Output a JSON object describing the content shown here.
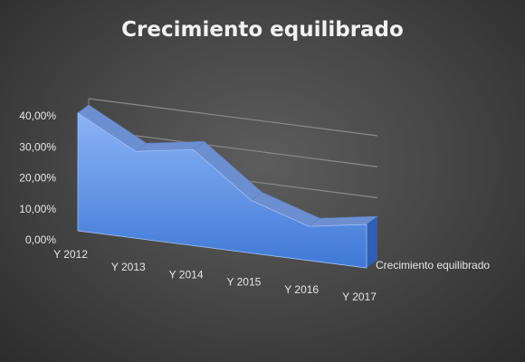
{
  "chart_data": {
    "type": "area",
    "title": "Crecimiento equilibrado",
    "categories": [
      "Y 2012",
      "Y 2013",
      "Y 2014",
      "Y 2015",
      "Y 2016",
      "Y 2017"
    ],
    "series": [
      {
        "name": "Crecimiento equilibrado",
        "values": [
          0.38,
          0.28,
          0.31,
          0.17,
          0.11,
          0.14
        ]
      }
    ],
    "yticks": [
      "0,00%",
      "10,00%",
      "20,00%",
      "30,00%",
      "40,00%"
    ],
    "ylim": [
      0,
      0.4
    ],
    "grid": true,
    "view": "3d",
    "colors": {
      "fill_top": "#8cb4f5",
      "fill_bottom": "#3f78d6",
      "ridge": "#6e8fcf",
      "grid": "#8a8a8a",
      "background": "#4a4a4a"
    }
  }
}
